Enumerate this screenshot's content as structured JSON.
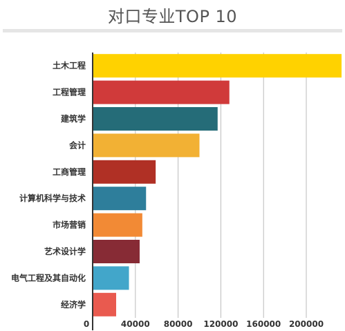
{
  "chart_data": {
    "type": "bar",
    "orientation": "horizontal",
    "title": "对口专业TOP 10",
    "categories": [
      "土木工程",
      "工程管理",
      "建筑学",
      "会计",
      "工商管理",
      "计算机科学与技术",
      "市场营销",
      "艺术设计学",
      "电气工程及其自动化",
      "经济学"
    ],
    "values": [
      233000,
      128000,
      117000,
      100000,
      59000,
      50000,
      46500,
      44000,
      34000,
      22000
    ],
    "colors": [
      "#FFD200",
      "#D03A3A",
      "#256C78",
      "#F2B134",
      "#B03025",
      "#2E7E9B",
      "#F28A35",
      "#872B35",
      "#42A6CA",
      "#E95A4F"
    ],
    "xlim": [
      0,
      233000
    ],
    "xticks": [
      0,
      40000,
      80000,
      120000,
      160000,
      200000
    ],
    "xtick_labels": [
      "0",
      "40000",
      "80000",
      "120000",
      "160000",
      "200000"
    ],
    "grid": "vertical",
    "legend": "none"
  }
}
